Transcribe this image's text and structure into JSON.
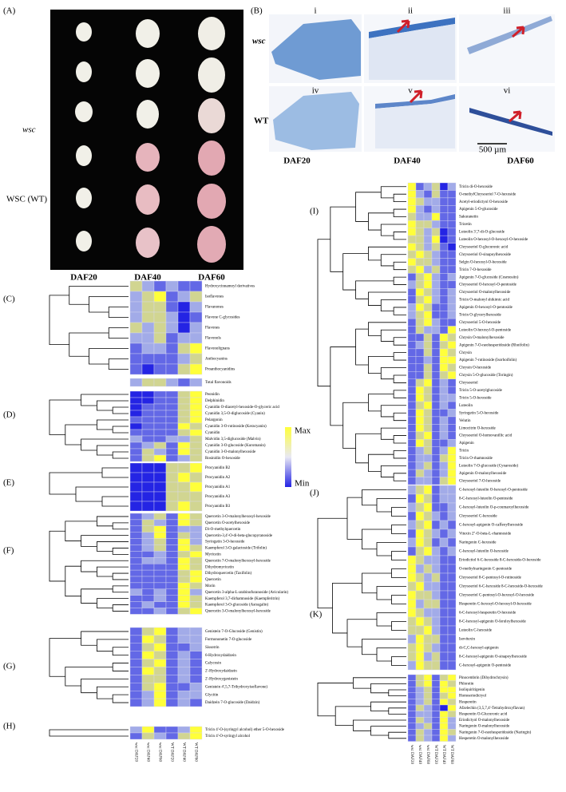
{
  "panels": {
    "A": {
      "label": "(A)",
      "row_labels": [
        "wsc",
        "WSC (WT)"
      ],
      "col_labels": [
        "DAF20",
        "DAF40",
        "DAF60"
      ]
    },
    "B": {
      "label": "(B)",
      "sub_labels": [
        "i",
        "ii",
        "iii",
        "iv",
        "v",
        "vi"
      ],
      "row_labels": [
        "wsc",
        "WT"
      ],
      "col_labels": [
        "DAF20",
        "DAF40",
        "DAF60"
      ],
      "scale_bar": "500 µm"
    }
  },
  "columns": [
    "wsc DAF20",
    "wsc DAF40",
    "wsc DAF60",
    "WT DAF20",
    "WT DAF40",
    "WT DAF60"
  ],
  "legend": {
    "max": "Max",
    "min": "Min"
  },
  "scale": {
    "min": -2,
    "max": 2,
    "colors": [
      "#2424e4",
      "#a2abe8",
      "#ffff3a"
    ]
  },
  "heatmaps": [
    {
      "label": "(C)",
      "rows": [
        "Hydroxycinnamoyl derivatives",
        "Isoflavones",
        "Flavanones",
        "Flavone C-glycosides",
        "Flavones",
        "Flavonols",
        "Flavonolignans",
        "Anthocyanins",
        "Proanthocyanidins"
      ],
      "values": [
        [
          1,
          0,
          -1,
          0,
          -1,
          -1
        ],
        [
          0,
          1,
          2,
          -1,
          0,
          1
        ],
        [
          0,
          1,
          1,
          -1,
          -2,
          0
        ],
        [
          0,
          1,
          1,
          0,
          -2,
          -1
        ],
        [
          1,
          0,
          1,
          0,
          -2,
          0
        ],
        [
          0,
          0,
          1,
          -1,
          0,
          0
        ],
        [
          -1,
          0,
          0,
          -1,
          1,
          2
        ],
        [
          -1,
          -1,
          -1,
          -1,
          0,
          1
        ],
        [
          -1,
          -2,
          -1,
          -1,
          1,
          2
        ]
      ]
    },
    {
      "rows": [
        "Total flavonoids"
      ],
      "values": [
        [
          0,
          1,
          1,
          0,
          -1,
          0
        ]
      ]
    },
    {
      "label": "(D)",
      "rows": [
        "Peonidin",
        "Delphinidin",
        "Cyanidin O-diacetyl-hexoside-O-glyceric acid",
        "Cyanidin 3,5-O-diglucoside (Cyanin)",
        "Pelargonin",
        "Cyanidin 3-O-rutinoside (Keracyanin)",
        "Cyanidin",
        "Malvidin 3,5-diglucoside (Malvin)",
        "Cyanidin 3-O-glucoside (Kuromanin)",
        "Cyanidin 3-O-malonylhexoside",
        "Rosinidin O-hexoside"
      ],
      "values": [
        [
          -2,
          -2,
          -1,
          -1,
          1,
          2
        ],
        [
          -2,
          -2,
          -1,
          -1,
          1,
          2
        ],
        [
          -2,
          -1,
          -1,
          -1,
          1,
          2
        ],
        [
          -2,
          -1,
          -1,
          -1,
          1,
          2
        ],
        [
          -1,
          -1,
          -1,
          -1,
          1,
          2
        ],
        [
          -2,
          -1,
          -1,
          -1,
          2,
          1
        ],
        [
          -1,
          -1,
          -1,
          -1,
          1,
          2
        ],
        [
          0,
          -1,
          -1,
          0,
          0,
          1
        ],
        [
          -1,
          0,
          1,
          -1,
          2,
          1
        ],
        [
          -1,
          1,
          0,
          -1,
          2,
          1
        ],
        [
          -1,
          1,
          2,
          -1,
          0,
          1
        ]
      ]
    },
    {
      "label": "(E)",
      "rows": [
        "Procyanidin B2",
        "Procyanidin A2",
        "Procyanidin A1",
        "Procyanidin A3",
        "Procyanidin B3"
      ],
      "values": [
        [
          -2,
          -2,
          -2,
          1,
          1,
          2
        ],
        [
          -2,
          -2,
          -2,
          1,
          2,
          1
        ],
        [
          -2,
          -2,
          -2,
          1,
          1,
          2
        ],
        [
          -2,
          -2,
          -2,
          1,
          1,
          1
        ],
        [
          -2,
          -2,
          -2,
          1,
          2,
          1
        ]
      ]
    },
    {
      "label": "(F)",
      "rows": [
        "Quercetin 3-O-malonylhexosyl-hexoside",
        "Quercetin O-acetylhexoside",
        "Di-O-methylquercetin",
        "Quercetin-3,4'-O-di-beta-glucopyranoside",
        "Syringetin 3-O-hexoside",
        "Kaempferol 3-O-galactoside (Trifolin)",
        "Myricetin",
        "Quercetin 7-O-malonylhexosyl-hexoside",
        "Dihydromyricetin",
        "Dihydroquercetin (Taxifolin)",
        "Quercetin",
        "Morin",
        "Quercetin 3-alpha-L-arabinofuranoside (Avicularin)",
        "Kaempferol 3,7-dirhamnoside (Kaempferitrin)",
        "Kaempferol 3-O-glucoside (Astragalin)",
        "Quercetin 3-O-malonylhexosyl-hexoside"
      ],
      "values": [
        [
          -1,
          0,
          1,
          -1,
          2,
          1
        ],
        [
          -1,
          1,
          0,
          -1,
          2,
          1
        ],
        [
          -1,
          1,
          2,
          -1,
          0,
          0
        ],
        [
          -1,
          0,
          2,
          -1,
          1,
          0
        ],
        [
          -1,
          0,
          1,
          -1,
          2,
          0
        ],
        [
          -1,
          0,
          1,
          -1,
          2,
          1
        ],
        [
          -1,
          -1,
          0,
          -1,
          1,
          2
        ],
        [
          -1,
          0,
          0,
          -1,
          2,
          1
        ],
        [
          -1,
          -1,
          -1,
          -1,
          2,
          1
        ],
        [
          -1,
          -1,
          -1,
          -1,
          1,
          2
        ],
        [
          -1,
          -1,
          -1,
          -1,
          1,
          2
        ],
        [
          -1,
          -1,
          -1,
          -1,
          2,
          1
        ],
        [
          0,
          -1,
          0,
          -1,
          2,
          0
        ],
        [
          -1,
          -1,
          0,
          -1,
          2,
          1
        ],
        [
          -1,
          0,
          -1,
          -1,
          2,
          1
        ],
        [
          -1,
          -1,
          0,
          -1,
          1,
          2
        ]
      ]
    },
    {
      "label": "(G)",
      "rows": [
        "Genistein 7-O-Glucoside (Genistin)",
        "Formononetin 7-O-glucoside",
        "Sissotrin",
        "6-Hydroxydaidzein",
        "Calycosin",
        "2'-Hydroxydaidzein",
        "2'-Hydroxygenistein",
        "Genistein 4',5,7-Trihydroxyisoflavone)",
        "Glycitin",
        "Daidzein 7-O-glucoside (Daidzin)"
      ],
      "values": [
        [
          -1,
          1,
          2,
          -1,
          0,
          0
        ],
        [
          -1,
          2,
          1,
          -1,
          0,
          0
        ],
        [
          -1,
          1,
          2,
          -1,
          -1,
          0
        ],
        [
          -1,
          2,
          1,
          -1,
          0,
          -1
        ],
        [
          -1,
          1,
          2,
          -1,
          0,
          -1
        ],
        [
          -1,
          2,
          1,
          -1,
          0,
          -1
        ],
        [
          -1,
          1,
          1,
          -1,
          0,
          -1
        ],
        [
          -1,
          1,
          2,
          -1,
          -1,
          0
        ],
        [
          -1,
          0,
          2,
          -1,
          0,
          0
        ],
        [
          -1,
          0,
          2,
          -1,
          0,
          -1
        ]
      ]
    },
    {
      "label": "(H)",
      "rows": [
        "Tricin 4'-O-(syringyl alcohol) ether 5-O-hexoside",
        "Tricin 4'-O-syringyl alcohol"
      ],
      "values": [
        [
          0,
          2,
          -1,
          -1,
          0,
          2
        ],
        [
          -1,
          1,
          0,
          -1,
          1,
          2
        ]
      ]
    },
    {
      "label": "(I)",
      "rows": [
        "Tricin di-O-hexoside",
        "O-methylChrysoeriol 7-O-hexoside",
        "Acetyl-eriodictyol O-hexoside",
        "Apigenin 5-O-glucoside",
        "Sakuranetin",
        "Tricetin",
        "Luteolin 3',7-di-O-glucoside",
        "Luteolin O-hexosyl-O-hexosyl-O-hexoside",
        "Chrysoeriol O-glucuronic acid",
        "Chrysoeriol O-sinapoylhexoside",
        "Selgin O-hexosyl-O-hexoside",
        "Tricin 7-O-hexoside",
        "Apigenin 7-O-glucoside (Cosmosiin)",
        "Chrysoeriol O-hexosyl-O-pentoside",
        "Chrysoeriol O-malonylhexoside",
        "Tricin O-malonyl shikimic acid",
        "Apigenin O-hexosyl-O-pentoside",
        "Tricin O-glycerylhexoside",
        "Chrysoeriol 5-O-hexoside",
        "Luteolin O-hexosyl-O-pentoside",
        "Chrysin O-malonylhexoside",
        "Apigenin 7-O-neohesperidoside (Rhoifolin)",
        "Chrysin",
        "Apigenin 7-rutinoside (Isorhoifolin)",
        "Chrysin O-hexoside",
        "Chrysin 5-O-glucoside (Toringin)",
        "Chrysoeriol",
        "Tricin 5-O-acetylglucoside",
        "Tricin 5-O-hexoside",
        "Luteolin",
        "Syringetin 5-O-hexoside",
        "Velutin",
        "Limocitrin O-hexoside",
        "Chrysoeriol O-homovanillic acid",
        "Apigenin",
        "Tricin",
        "Tricin O-rhamnoside",
        "Luteolin 7-O-glucoside (Cynaroside)",
        "Apigenin O-malonylhexoside",
        "Chrysoeriol 7-O-hexoside"
      ],
      "values": [
        [
          2,
          -1,
          0,
          1,
          -2,
          0
        ],
        [
          2,
          0,
          -1,
          1,
          -1,
          -1
        ],
        [
          2,
          1,
          0,
          0,
          -1,
          -1
        ],
        [
          2,
          0,
          -1,
          0,
          -1,
          -1
        ],
        [
          1,
          0,
          0,
          2,
          -1,
          -1
        ],
        [
          2,
          1,
          1,
          0,
          -1,
          -1
        ],
        [
          2,
          1,
          0,
          1,
          -2,
          -1
        ],
        [
          1,
          1,
          0,
          2,
          -2,
          -1
        ],
        [
          2,
          1,
          0,
          1,
          -1,
          -2
        ],
        [
          1,
          2,
          1,
          0,
          -1,
          -1
        ],
        [
          2,
          1,
          1,
          0,
          -1,
          -1
        ],
        [
          1,
          2,
          0,
          1,
          -1,
          -1
        ],
        [
          -1,
          1,
          2,
          0,
          -1,
          0
        ],
        [
          0,
          1,
          2,
          0,
          -1,
          -1
        ],
        [
          -1,
          2,
          1,
          0,
          -1,
          0
        ],
        [
          -1,
          1,
          2,
          0,
          -1,
          0
        ],
        [
          0,
          2,
          1,
          -1,
          -1,
          0
        ],
        [
          0,
          1,
          2,
          -1,
          -1,
          0
        ],
        [
          -1,
          1,
          2,
          0,
          -1,
          -1
        ],
        [
          -1,
          1,
          0,
          0,
          -1,
          2
        ],
        [
          -1,
          -1,
          1,
          -1,
          2,
          1
        ],
        [
          -1,
          0,
          1,
          -1,
          1,
          2
        ],
        [
          -1,
          -1,
          1,
          -1,
          2,
          1
        ],
        [
          -1,
          -1,
          0,
          -1,
          2,
          2
        ],
        [
          -1,
          -1,
          1,
          -1,
          2,
          1
        ],
        [
          -1,
          -1,
          1,
          -1,
          1,
          2
        ],
        [
          -1,
          1,
          2,
          -1,
          0,
          -1
        ],
        [
          -1,
          2,
          1,
          -1,
          0,
          -1
        ],
        [
          -1,
          2,
          1,
          -1,
          0,
          0
        ],
        [
          -1,
          1,
          2,
          -1,
          0,
          -1
        ],
        [
          -1,
          2,
          1,
          -1,
          -1,
          0
        ],
        [
          -1,
          2,
          1,
          -1,
          0,
          -1
        ],
        [
          -1,
          2,
          1,
          -1,
          0,
          -1
        ],
        [
          -1,
          1,
          2,
          -1,
          0,
          -1
        ],
        [
          -1,
          2,
          1,
          -1,
          -1,
          0
        ],
        [
          -1,
          0,
          1,
          -1,
          0,
          2
        ],
        [
          -1,
          0,
          0,
          -1,
          1,
          2
        ],
        [
          -1,
          0,
          1,
          -1,
          0,
          2
        ],
        [
          -1,
          1,
          0,
          -1,
          0,
          2
        ],
        [
          -1,
          0,
          0,
          -1,
          1,
          2
        ]
      ]
    },
    {
      "label": "(J)",
      "rows": [
        "C-hexosyl-luteolin O-hexosyl-O-pentoside",
        "8-C-hexosyl-luteolin O-pentoside",
        "C-hexosyl-luteolin O-p-coumaroylhexoside",
        "Chrysoeriol C-hexoside",
        "C-hexosyl-apigenin O-caffeoylhexoside",
        "Vitexin 2''-O-beta-L-rhamnoside",
        "Naringenin C-hexoside",
        "C-hexosyl-luteolin O-hexoside",
        "Eriodictiol 6-C-hexoside 8-C-hexoside-O-hexoside",
        "O-methylnaringenin C-pentoside",
        "Chrysoeriol 8-C-pentosyl-O-rutinoside",
        "Chrysoeriol 6-C-hexoside 8-C-hexoside-O-hexoside",
        "Chrysoeriol C-pentosyl-O-hexosyl-O-hexoside",
        "Hesperetin C-hexosyl-O-hexosyl-O-hexoside",
        "6-C-hexosyl-hesperetin O-hexoside",
        "8-C-hexosyl-apigenin O-feruloylhexoside",
        "Luteolin C-hexoside",
        "Isovitexin",
        "di-C,C-hexosyl-apigenin",
        "8-C-hexosyl-apigenin O-sinapoylhexoside",
        "C-hexosyl-apigenin O-pentoside"
      ],
      "values": [
        [
          0,
          1,
          2,
          -1,
          0,
          0
        ],
        [
          -1,
          2,
          1,
          -1,
          0,
          0
        ],
        [
          0,
          1,
          2,
          -1,
          -1,
          0
        ],
        [
          -1,
          2,
          1,
          0,
          -1,
          0
        ],
        [
          0,
          1,
          2,
          -1,
          0,
          -1
        ],
        [
          -1,
          2,
          1,
          0,
          -1,
          0
        ],
        [
          0,
          2,
          1,
          -1,
          0,
          -1
        ],
        [
          -1,
          1,
          2,
          0,
          -1,
          0
        ],
        [
          2,
          1,
          0,
          0,
          -1,
          -1
        ],
        [
          2,
          0,
          1,
          0,
          -1,
          -1
        ],
        [
          2,
          1,
          0,
          1,
          -1,
          -1
        ],
        [
          1,
          2,
          0,
          0,
          -1,
          -1
        ],
        [
          2,
          1,
          1,
          0,
          -1,
          -1
        ],
        [
          2,
          0,
          1,
          1,
          -1,
          -1
        ],
        [
          2,
          1,
          0,
          0,
          -1,
          -1
        ],
        [
          1,
          2,
          1,
          0,
          -1,
          -1
        ],
        [
          1,
          1,
          2,
          0,
          -1,
          -1
        ],
        [
          0,
          2,
          1,
          1,
          -1,
          -1
        ],
        [
          1,
          2,
          1,
          0,
          -1,
          -1
        ],
        [
          1,
          2,
          0,
          1,
          -1,
          -1
        ],
        [
          0,
          2,
          1,
          1,
          -1,
          -1
        ]
      ]
    },
    {
      "label": "(K)",
      "rows": [
        "Pinocembrin (Dihydrochrysin)",
        "Phloretin",
        "Isoliquiritigenin",
        "Homoeriodictyol",
        "Hesperetin",
        "Afzelechin (3,5,7,4'-Tetrahydroxyflavan)",
        "Hesperetin O-Glucuronic acid",
        "Eriodictyol O-malonylhexoside",
        "Naringenin O-malonylhexoside",
        "Naringenin 7-O-neohesperidoside (Naringin)",
        "Hesperetin O-malonylhexoside"
      ],
      "values": [
        [
          -1,
          1,
          2,
          -1,
          1,
          2
        ],
        [
          -1,
          1,
          2,
          -1,
          2,
          1
        ],
        [
          -1,
          0,
          1,
          -1,
          2,
          2
        ],
        [
          -1,
          0,
          1,
          -1,
          1,
          2
        ],
        [
          -1,
          0,
          1,
          -1,
          2,
          1
        ],
        [
          -1,
          1,
          0,
          -1,
          -2,
          2
        ],
        [
          -1,
          0,
          0,
          -1,
          2,
          1
        ],
        [
          -1,
          1,
          0,
          -1,
          2,
          0
        ],
        [
          -1,
          0,
          1,
          -1,
          2,
          0
        ],
        [
          -1,
          1,
          0,
          -1,
          2,
          1
        ],
        [
          -1,
          1,
          0,
          -1,
          2,
          0
        ]
      ]
    }
  ]
}
